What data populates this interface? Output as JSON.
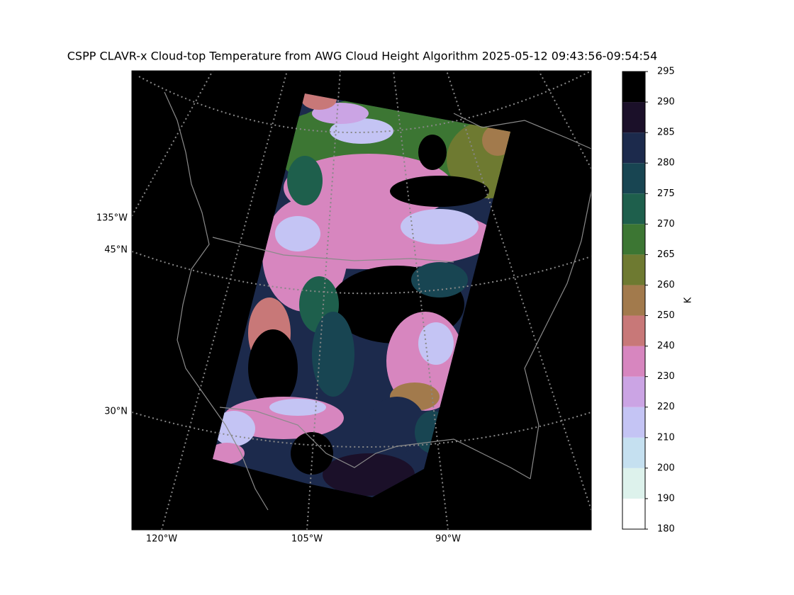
{
  "title": "CSPP CLAVR-x Cloud-top Temperature from AWG Cloud Height Algorithm 2025-05-12 09:43:56-09:54:54",
  "map": {
    "left_labels": [
      "135°W",
      "45°N",
      "30°N"
    ],
    "bottom_labels": [
      "120°W",
      "105°W",
      "90°W"
    ]
  },
  "colorbar": {
    "label": "K",
    "boundaries": [
      180,
      190,
      200,
      210,
      220,
      230,
      240,
      250,
      260,
      265,
      270,
      275,
      280,
      285,
      290,
      295
    ],
    "colors": [
      "#ffffff",
      "#ddf2ec",
      "#c5e0f0",
      "#c4c4f4",
      "#cba4e4",
      "#d786bf",
      "#c87878",
      "#a27a4c",
      "#6e7a31",
      "#3c7633",
      "#1e5f4c",
      "#184552",
      "#1c2a4c",
      "#1b1029",
      "#000000"
    ]
  }
}
